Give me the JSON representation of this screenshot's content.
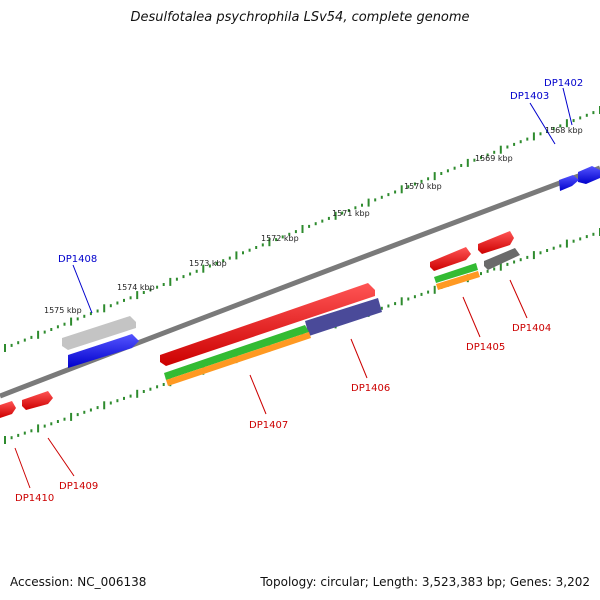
{
  "title": "Desulfotalea psychrophila LSv54, complete genome",
  "footer": {
    "accession": "Accession: NC_006138",
    "summary": "Topology: circular; Length: 3,523,383 bp; Genes: 3,202"
  },
  "ticks": {
    "outer": [
      "1568 kbp",
      "1569 kbp",
      "1570 kbp",
      "1571 kbp",
      "1572 kbp",
      "1573 kbp",
      "1574 kbp",
      "1575 kbp"
    ]
  },
  "genes_upper": [
    {
      "label": "DP1402",
      "color": "#0000cc"
    },
    {
      "label": "DP1403",
      "color": "#0000cc"
    },
    {
      "label": "DP1408",
      "color": "#0000cc"
    }
  ],
  "genes_lower": [
    {
      "label": "DP1404",
      "color": "#cc0000"
    },
    {
      "label": "DP1405",
      "color": "#cc0000"
    },
    {
      "label": "DP1406",
      "color": "#cc0000"
    },
    {
      "label": "DP1407",
      "color": "#cc0000"
    },
    {
      "label": "DP1409",
      "color": "#cc0000"
    },
    {
      "label": "DP1410",
      "color": "#cc0000"
    }
  ],
  "colors": {
    "forward_label": "#0000cc",
    "reverse_label": "#cc0000",
    "tick": "#2e8b2e",
    "backbone": "#7a7a7a",
    "gene_red": "#ee1111",
    "gene_blue": "#1111ee",
    "gene_grey": "#c0c0c0",
    "gene_dark_grey": "#6a6a6a",
    "gene_green": "#33bb33",
    "gene_orange": "#ff9922",
    "gene_purple": "#4a4a99"
  }
}
